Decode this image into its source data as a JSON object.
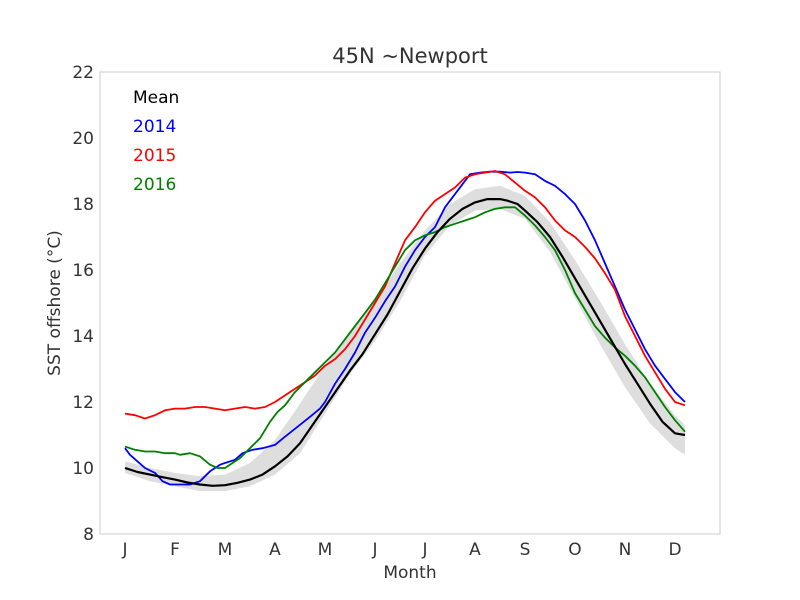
{
  "chart_data": {
    "type": "line",
    "title": "45N ~Newport",
    "xlabel": "Month",
    "ylabel": "SST offshore (°C)",
    "ylim": [
      8,
      22
    ],
    "xlim": [
      0.5,
      12.9
    ],
    "yticks": [
      "8",
      "10",
      "12",
      "14",
      "16",
      "18",
      "20",
      "22"
    ],
    "x_tick_values": [
      1,
      2,
      3,
      4,
      5,
      6,
      7,
      8,
      9,
      10,
      11,
      12
    ],
    "x_tick_labels": [
      "J",
      "F",
      "M",
      "A",
      "M",
      "J",
      "J",
      "A",
      "S",
      "O",
      "N",
      "D"
    ],
    "grid": false,
    "legend_placement": "top-left",
    "band": {
      "color": "#d3d3d3",
      "x": [
        1.0,
        1.5,
        2.0,
        2.5,
        3.0,
        3.5,
        4.0,
        4.5,
        5.0,
        5.5,
        6.0,
        6.5,
        7.0,
        7.5,
        8.0,
        8.5,
        9.0,
        9.5,
        10.0,
        10.5,
        11.0,
        11.5,
        12.0,
        12.2
      ],
      "upper": [
        10.2,
        10.0,
        9.85,
        9.75,
        9.8,
        10.15,
        10.85,
        11.95,
        13.1,
        14.15,
        15.1,
        16.2,
        17.2,
        18.0,
        18.45,
        18.55,
        18.25,
        17.45,
        16.3,
        15.05,
        13.75,
        12.55,
        11.6,
        11.3
      ],
      "lower": [
        9.85,
        9.6,
        9.45,
        9.3,
        9.3,
        9.45,
        9.8,
        10.45,
        11.65,
        12.85,
        13.85,
        15.05,
        16.45,
        17.35,
        17.8,
        17.85,
        17.55,
        16.55,
        15.15,
        13.75,
        12.45,
        11.35,
        10.6,
        10.4
      ]
    },
    "series": [
      {
        "name": "Mean",
        "color": "#000000",
        "x": [
          1.0,
          1.25,
          1.5,
          1.75,
          2.0,
          2.25,
          2.5,
          2.75,
          3.0,
          3.25,
          3.5,
          3.75,
          4.0,
          4.25,
          4.5,
          4.75,
          5.0,
          5.25,
          5.5,
          5.75,
          6.0,
          6.25,
          6.5,
          6.75,
          7.0,
          7.25,
          7.5,
          7.75,
          8.0,
          8.25,
          8.5,
          8.65,
          8.85,
          9.0,
          9.25,
          9.5,
          9.75,
          10.0,
          10.25,
          10.5,
          10.75,
          11.0,
          11.25,
          11.5,
          11.75,
          12.0,
          12.2
        ],
        "values": [
          10.0,
          9.88,
          9.8,
          9.72,
          9.65,
          9.56,
          9.5,
          9.46,
          9.48,
          9.55,
          9.65,
          9.8,
          10.05,
          10.35,
          10.75,
          11.3,
          11.85,
          12.4,
          12.95,
          13.45,
          14.05,
          14.65,
          15.35,
          16.05,
          16.65,
          17.15,
          17.55,
          17.85,
          18.05,
          18.15,
          18.15,
          18.1,
          18.0,
          17.8,
          17.45,
          17.0,
          16.4,
          15.75,
          15.1,
          14.45,
          13.8,
          13.15,
          12.55,
          11.95,
          11.4,
          11.05,
          11.0
        ]
      },
      {
        "name": "2014",
        "color": "#0000ff",
        "x": [
          1.0,
          1.1,
          1.25,
          1.4,
          1.6,
          1.75,
          1.9,
          2.1,
          2.3,
          2.5,
          2.7,
          2.9,
          3.0,
          3.2,
          3.35,
          3.55,
          3.75,
          4.0,
          4.2,
          4.45,
          4.7,
          4.9,
          5.0,
          5.2,
          5.4,
          5.6,
          5.8,
          6.0,
          6.2,
          6.4,
          6.6,
          6.8,
          7.0,
          7.2,
          7.4,
          7.6,
          7.75,
          7.9,
          8.1,
          8.3,
          8.5,
          8.7,
          8.85,
          9.0,
          9.2,
          9.4,
          9.6,
          9.8,
          10.0,
          10.2,
          10.4,
          10.6,
          10.8,
          11.0,
          11.2,
          11.4,
          11.6,
          11.8,
          12.0,
          12.2
        ],
        "values": [
          10.6,
          10.4,
          10.2,
          10.0,
          9.85,
          9.6,
          9.5,
          9.5,
          9.5,
          9.6,
          9.9,
          10.1,
          10.15,
          10.25,
          10.45,
          10.55,
          10.6,
          10.7,
          10.95,
          11.25,
          11.55,
          11.8,
          12.0,
          12.55,
          13.0,
          13.5,
          14.1,
          14.55,
          15.05,
          15.5,
          16.1,
          16.6,
          17.0,
          17.3,
          17.9,
          18.3,
          18.6,
          18.9,
          18.95,
          18.98,
          18.98,
          18.95,
          18.97,
          18.95,
          18.9,
          18.7,
          18.55,
          18.3,
          18.0,
          17.5,
          16.9,
          16.2,
          15.5,
          14.8,
          14.2,
          13.6,
          13.1,
          12.7,
          12.3,
          12.0
        ]
      },
      {
        "name": "2015",
        "color": "#ff0000",
        "x": [
          1.0,
          1.2,
          1.4,
          1.6,
          1.8,
          2.0,
          2.2,
          2.4,
          2.6,
          2.8,
          3.0,
          3.2,
          3.4,
          3.6,
          3.8,
          4.0,
          4.2,
          4.4,
          4.6,
          4.8,
          5.0,
          5.2,
          5.4,
          5.6,
          5.8,
          6.0,
          6.2,
          6.4,
          6.6,
          6.8,
          7.0,
          7.2,
          7.4,
          7.6,
          7.8,
          8.0,
          8.2,
          8.4,
          8.6,
          8.8,
          9.0,
          9.2,
          9.4,
          9.6,
          9.8,
          10.0,
          10.2,
          10.4,
          10.6,
          10.8,
          11.0,
          11.2,
          11.4,
          11.6,
          11.8,
          12.0,
          12.2
        ],
        "values": [
          11.65,
          11.6,
          11.5,
          11.6,
          11.75,
          11.8,
          11.8,
          11.85,
          11.85,
          11.8,
          11.75,
          11.8,
          11.85,
          11.8,
          11.85,
          12.0,
          12.2,
          12.4,
          12.6,
          12.8,
          13.1,
          13.3,
          13.6,
          14.0,
          14.5,
          15.0,
          15.5,
          16.2,
          16.9,
          17.3,
          17.75,
          18.1,
          18.3,
          18.5,
          18.8,
          18.9,
          18.95,
          19.0,
          18.9,
          18.65,
          18.4,
          18.2,
          17.9,
          17.5,
          17.2,
          17.0,
          16.7,
          16.35,
          15.9,
          15.4,
          14.6,
          14.0,
          13.4,
          12.9,
          12.4,
          12.0,
          11.9
        ]
      },
      {
        "name": "2016",
        "color": "#008000",
        "x": [
          1.0,
          1.2,
          1.4,
          1.6,
          1.8,
          2.0,
          2.1,
          2.3,
          2.5,
          2.7,
          2.85,
          3.0,
          3.15,
          3.3,
          3.5,
          3.7,
          3.9,
          4.05,
          4.2,
          4.4,
          4.6,
          4.8,
          5.0,
          5.2,
          5.4,
          5.6,
          5.8,
          6.0,
          6.2,
          6.4,
          6.6,
          6.8,
          7.0,
          7.2,
          7.4,
          7.6,
          7.8,
          8.0,
          8.2,
          8.4,
          8.6,
          8.8,
          9.0,
          9.2,
          9.4,
          9.6,
          9.8,
          10.0,
          10.2,
          10.4,
          10.6,
          10.8,
          11.0,
          11.2,
          11.4,
          11.6,
          11.8,
          12.0,
          12.2
        ],
        "values": [
          10.65,
          10.55,
          10.5,
          10.5,
          10.45,
          10.45,
          10.4,
          10.45,
          10.35,
          10.1,
          10.0,
          10.0,
          10.15,
          10.3,
          10.6,
          10.9,
          11.4,
          11.7,
          11.9,
          12.3,
          12.6,
          12.9,
          13.2,
          13.5,
          13.9,
          14.3,
          14.7,
          15.1,
          15.6,
          16.1,
          16.6,
          16.9,
          17.05,
          17.15,
          17.3,
          17.4,
          17.5,
          17.6,
          17.75,
          17.85,
          17.9,
          17.9,
          17.65,
          17.35,
          17.0,
          16.6,
          16.0,
          15.3,
          14.8,
          14.3,
          13.95,
          13.65,
          13.4,
          13.1,
          12.75,
          12.3,
          11.85,
          11.45,
          11.1
        ]
      }
    ]
  }
}
